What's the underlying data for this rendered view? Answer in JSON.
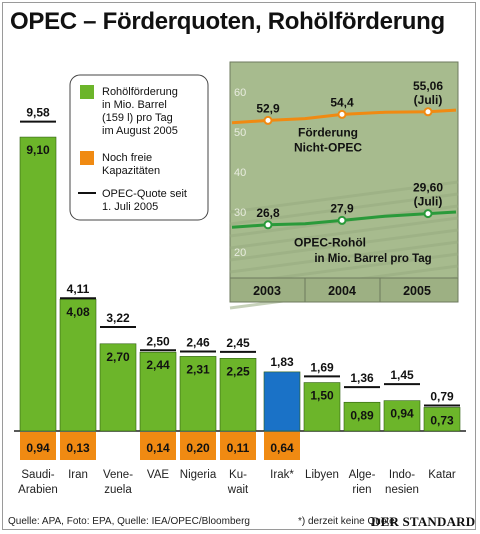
{
  "title": "OPEC – Förderquoten, Rohölförderung",
  "legend": {
    "production": "Rohölförderung in Mio. Barrel (159 l) pro Tag im August 2005",
    "spare": "Noch freie Kapazitäten",
    "quota": "OPEC-Quote seit 1. Juli 2005"
  },
  "colors": {
    "production": "#6cb52a",
    "iraq": "#1a72c7",
    "spare": "#f08a12",
    "quota": "#111111",
    "inset_bg": "#a7bb8e",
    "nonopec_line": "#f08a12",
    "opec_line": "#2a9a3a"
  },
  "chart_data": [
    {
      "type": "bar",
      "categories": [
        "Saudi-Arabien",
        "Iran",
        "Venezuela",
        "VAE",
        "Nigeria",
        "Kuwait",
        "Irak*",
        "Libyen",
        "Algerien",
        "Indonesien",
        "Katar"
      ],
      "category_lines": [
        [
          "Saudi-",
          "Arabien"
        ],
        [
          "Iran"
        ],
        [
          "Vene-",
          "zuela"
        ],
        [
          "VAE"
        ],
        [
          "Nigeria"
        ],
        [
          "Ku-",
          "wait"
        ],
        [
          "Irak*"
        ],
        [
          "Libyen"
        ],
        [
          "Alge-",
          "rien"
        ],
        [
          "Indo-",
          "nesien"
        ],
        [
          "Katar"
        ]
      ],
      "series": [
        {
          "name": "Rohölförderung in Mio. Barrel (159 l) pro Tag im August 2005",
          "values": [
            9.1,
            4.08,
            2.7,
            2.44,
            2.31,
            2.25,
            1.83,
            1.5,
            0.89,
            0.94,
            0.73
          ]
        },
        {
          "name": "Noch freie Kapazitäten",
          "values": [
            0.94,
            0.13,
            null,
            0.14,
            0.2,
            0.11,
            0.64,
            null,
            null,
            null,
            null
          ]
        },
        {
          "name": "OPEC-Quote seit 1. Juli 2005",
          "values": [
            9.58,
            4.11,
            3.22,
            2.5,
            2.46,
            2.45,
            null,
            1.69,
            1.36,
            1.45,
            0.79
          ]
        }
      ],
      "production_labels": [
        "9,10",
        "4,08",
        "2,70",
        "2,44",
        "2,31",
        "2,25",
        "1,83",
        "1,50",
        "0,89",
        "0,94",
        "0,73"
      ],
      "spare_labels": [
        "0,94",
        "0,13",
        "",
        "0,14",
        "0,20",
        "0,11",
        "0,64",
        "",
        "",
        "",
        ""
      ],
      "quota_labels": [
        "9,58",
        "4,11",
        "3,22",
        "2,50",
        "2,46",
        "2,45",
        "",
        "1,69",
        "1,36",
        "1,45",
        "0,79"
      ]
    },
    {
      "type": "line",
      "x": [
        2003,
        2004,
        2005
      ],
      "x_ticks": [
        "2003",
        "2004",
        "2005"
      ],
      "ylim": [
        15,
        65
      ],
      "y_ticks": [
        20,
        30,
        40,
        50,
        60
      ],
      "ylabel": "in Mio. Barrel pro Tag",
      "series": [
        {
          "name": "Förderung Nicht-OPEC",
          "points": [
            52.9,
            54.4,
            55.06
          ],
          "labels": [
            "52,9",
            "54,4",
            "55,06 (Juli)"
          ]
        },
        {
          "name": "OPEC-Rohöl",
          "points": [
            26.8,
            27.9,
            29.6
          ],
          "labels": [
            "26,8",
            "27,9",
            "29,60 (Juli)"
          ]
        }
      ]
    }
  ],
  "footer": {
    "source": "Quelle: APA, Foto: EPA, Quelle: IEA/OPEC/Bloomberg",
    "note": "*) derzeit keine Quote",
    "logo": "DER STANDARD"
  }
}
